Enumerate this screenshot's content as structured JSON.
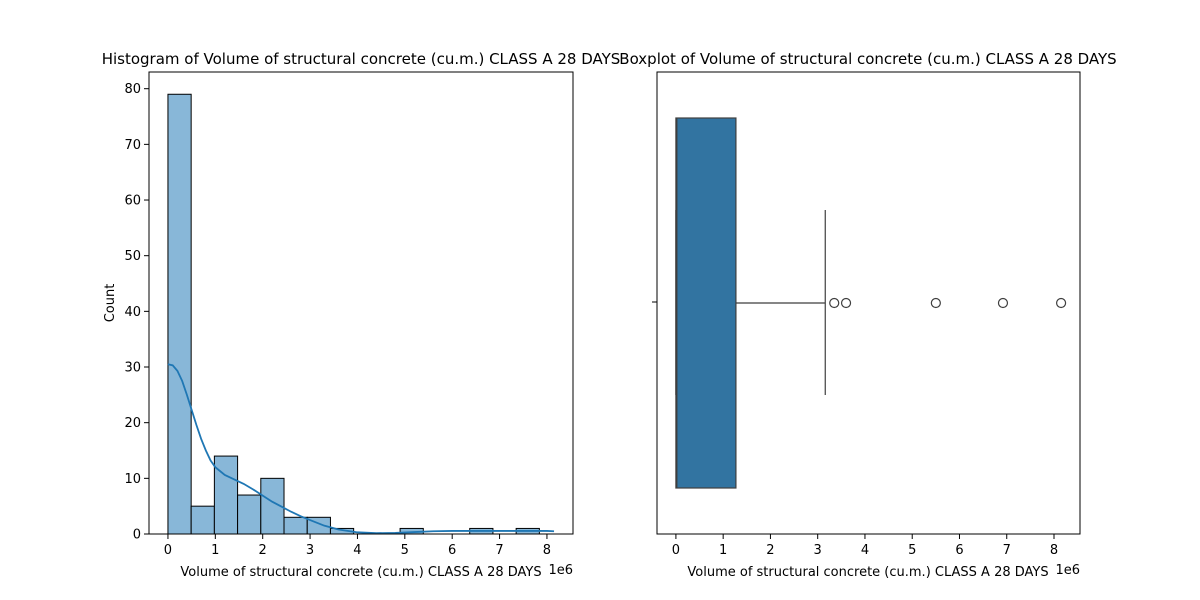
{
  "chart_data": [
    {
      "type": "bar",
      "subtype": "histogram",
      "title": "Histogram of Volume of structural concrete (cu.m.)  CLASS A 28 DAYS",
      "xlabel": "Volume of structural concrete (cu.m.)  CLASS A 28 DAYS",
      "ylabel": "Count",
      "x_offset_label": "1e6",
      "xlim": [
        -0.4,
        8.55
      ],
      "ylim": [
        0,
        83
      ],
      "xticks": [
        0,
        1,
        2,
        3,
        4,
        5,
        6,
        7,
        8
      ],
      "yticks": [
        0,
        10,
        20,
        30,
        40,
        50,
        60,
        70,
        80
      ],
      "bin_edges": [
        0.0,
        0.49,
        0.98,
        1.47,
        1.96,
        2.45,
        2.94,
        3.43,
        3.92,
        4.41,
        4.9,
        5.39,
        5.88,
        6.37,
        6.86,
        7.35,
        7.84,
        8.33
      ],
      "values": [
        79,
        5,
        14,
        7,
        10,
        3,
        3,
        1,
        0,
        0,
        1,
        0,
        0,
        1,
        0,
        1,
        0
      ],
      "kde": {
        "x": [
          0.0,
          0.1,
          0.2,
          0.3,
          0.4,
          0.5,
          0.6,
          0.7,
          0.8,
          0.9,
          1.0,
          1.2,
          1.4,
          1.6,
          1.8,
          2.0,
          2.2,
          2.4,
          2.6,
          2.8,
          3.0,
          3.3,
          3.6,
          4.0,
          4.4,
          4.8,
          5.2,
          5.6,
          6.0,
          6.4,
          6.8,
          7.2,
          7.6,
          8.0,
          8.15
        ],
        "y": [
          30.5,
          30.3,
          29.3,
          27.5,
          25.0,
          22.3,
          19.6,
          17.1,
          15.0,
          13.2,
          12.0,
          10.6,
          9.8,
          9.0,
          8.0,
          6.9,
          5.8,
          4.9,
          4.0,
          3.2,
          2.5,
          1.5,
          0.8,
          0.3,
          0.15,
          0.2,
          0.35,
          0.5,
          0.55,
          0.55,
          0.55,
          0.55,
          0.55,
          0.55,
          0.5
        ]
      },
      "colors": {
        "bar_fill": "#88b7d8",
        "bar_edge": "#000000",
        "kde_line": "#1f77b4"
      }
    },
    {
      "type": "box",
      "title": "Boxplot of Volume of structural concrete (cu.m.)  CLASS A 28 DAYS",
      "xlabel": "Volume of structural concrete (cu.m.)  CLASS A 28 DAYS",
      "x_offset_label": "1e6",
      "xlim": [
        -0.4,
        8.55
      ],
      "xticks": [
        0,
        1,
        2,
        3,
        4,
        5,
        6,
        7,
        8
      ],
      "whisker_low": 0.0,
      "q1": 0.0,
      "median": 0.02,
      "q3": 1.27,
      "whisker_high": 3.16,
      "outliers": [
        3.35,
        3.6,
        5.5,
        6.92,
        8.15
      ],
      "colors": {
        "box_fill": "#3274a1",
        "line": "#3f3f3f"
      }
    }
  ]
}
